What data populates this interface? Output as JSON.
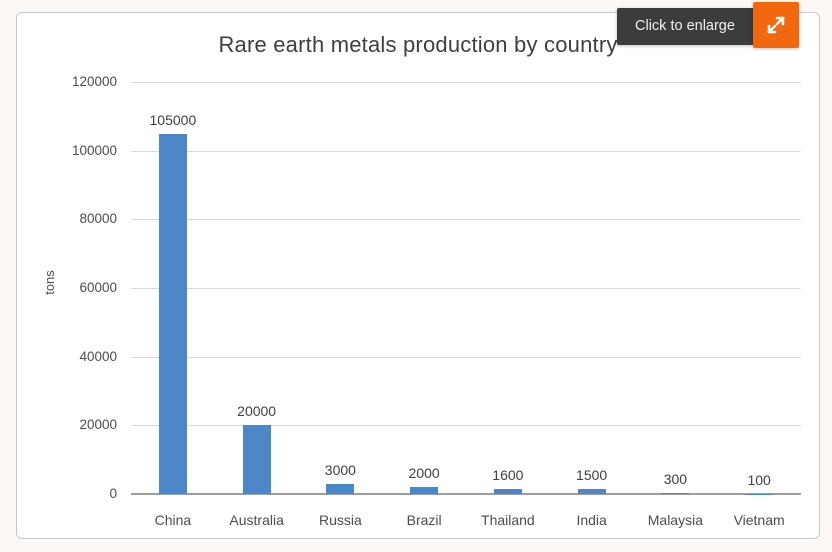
{
  "overlay": {
    "enlarge_label": "Click to enlarge"
  },
  "colors": {
    "bar": "#4d87c7",
    "accent_orange": "#f1680f",
    "tooltip_bg": "#3c3c3c",
    "tooltip_text": "#f2f2f2",
    "grid": "#d9d9d9",
    "axis": "#9e9e9e",
    "title_text": "#3f3f3f",
    "tick_text": "#4d4d4d",
    "value_text": "#3f3f3f"
  },
  "chart_data": {
    "type": "bar",
    "title": "Rare earth metals production by country",
    "xlabel": "",
    "ylabel": "tons",
    "categories": [
      "China",
      "Australia",
      "Russia",
      "Brazil",
      "Thailand",
      "India",
      "Malaysia",
      "Vietnam"
    ],
    "values": [
      105000,
      20000,
      3000,
      2000,
      1600,
      1500,
      300,
      100
    ],
    "ylim": [
      0,
      120000
    ],
    "yticks": [
      0,
      20000,
      40000,
      60000,
      80000,
      100000,
      120000
    ],
    "grid": true,
    "data_labels": true,
    "legend_position": "none"
  }
}
